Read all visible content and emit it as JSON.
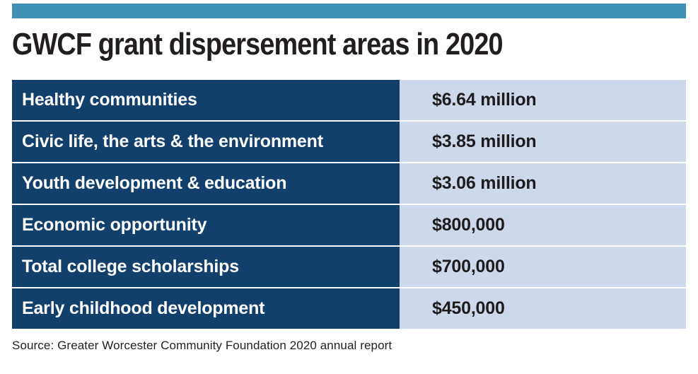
{
  "title": "GWCF grant dispersement areas in 2020",
  "source": "Source: Greater Worcester Community Foundation 2020 annual report",
  "colors": {
    "accent_bar": "#3f92b5",
    "label_cell_bg": "#12406c",
    "value_cell_bg": "#cdd9eb",
    "label_text": "#ffffff",
    "value_text": "#1e1b1c",
    "title_text": "#221e1f"
  },
  "table": {
    "rows": [
      {
        "label": "Healthy communities",
        "value": "$6.64 million"
      },
      {
        "label": "Civic life, the arts & the environment",
        "value": "$3.85 million"
      },
      {
        "label": "Youth development & education",
        "value": "$3.06 million"
      },
      {
        "label": "Economic opportunity",
        "value": "$800,000"
      },
      {
        "label": "Total college scholarships",
        "value": "$700,000"
      },
      {
        "label": "Early childhood development",
        "value": "$450,000"
      }
    ]
  },
  "chart_data": {
    "type": "table",
    "title": "GWCF grant dispersement areas in 2020",
    "categories": [
      "Healthy communities",
      "Civic life, the arts & the environment",
      "Youth development & education",
      "Economic opportunity",
      "Total college scholarships",
      "Early childhood development"
    ],
    "values_usd": [
      6640000,
      3850000,
      3060000,
      800000,
      700000,
      450000
    ],
    "value_labels": [
      "$6.64 million",
      "$3.85 million",
      "$3.06 million",
      "$800,000",
      "$700,000",
      "$450,000"
    ],
    "source": "Source: Greater Worcester Community Foundation 2020 annual report",
    "legend": "none",
    "grid": "off"
  }
}
